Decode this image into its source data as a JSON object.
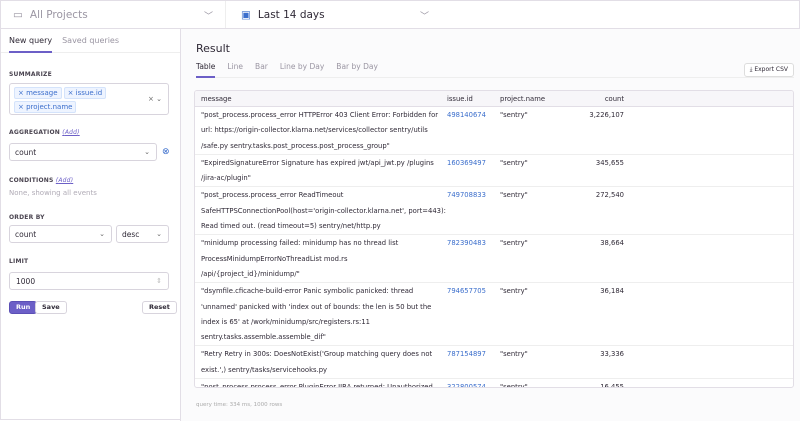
{
  "header": {
    "project": "All Projects",
    "date_range": "Last 14 days"
  },
  "sidebar": {
    "tabs": [
      "New query",
      "Saved queries"
    ],
    "summarize": {
      "label": "SUMMARIZE",
      "tags": [
        "message",
        "issue.id",
        "project.name"
      ]
    },
    "aggregation": {
      "label": "AGGREGATION",
      "add": "Add",
      "value": "count"
    },
    "conditions": {
      "label": "CONDITIONS",
      "add": "Add",
      "empty": "None, showing all events"
    },
    "order_by": {
      "label": "ORDER BY",
      "field": "count",
      "direction": "desc"
    },
    "limit": {
      "label": "LIMIT",
      "value": "1000"
    },
    "buttons": {
      "run": "Run",
      "save": "Save",
      "reset": "Reset"
    }
  },
  "main": {
    "title": "Result",
    "tabs": [
      "Table",
      "Line",
      "Bar",
      "Line by Day",
      "Bar by Day"
    ],
    "export": "Export CSV",
    "columns": [
      "message",
      "issue.id",
      "project.name",
      "count"
    ],
    "rows": [
      {
        "message": "\"post_process.process_error HTTPError 403 Client Error: Forbidden for url: https://origin-collector.klarna.net/services/collector sentry/utils /safe.py sentry.tasks.post_process.post_process_group\"",
        "issue": "498140674",
        "project": "\"sentry\"",
        "count": "3,226,107"
      },
      {
        "message": "\"ExpiredSignatureError Signature has expired jwt/api_jwt.py /plugins /jira-ac/plugin\"",
        "issue": "160369497",
        "project": "\"sentry\"",
        "count": "345,655"
      },
      {
        "message": "\"post_process.process_error ReadTimeout SafeHTTPSConnectionPool(host='origin-collector.klarna.net', port=443): Read timed out. (read timeout=5) sentry/net/http.py",
        "issue": "749708833",
        "project": "\"sentry\"",
        "count": "272,540"
      },
      {
        "message": "\"minidump processing failed: minidump has no thread list ProcessMinidumpErrorNoThreadList mod.rs /api/{project_id}/minidump/\"",
        "issue": "782390483",
        "project": "\"sentry\"",
        "count": "38,664"
      },
      {
        "message": "\"dsymfile.cficache-build-error Panic symbolic panicked: thread 'unnamed' panicked with 'index out of bounds: the len is 50 but the index is 65' at /work/minidump/src/registers.rs:11 sentry.tasks.assemble.assemble_dif\"",
        "issue": "794657705",
        "project": "\"sentry\"",
        "count": "36,184"
      },
      {
        "message": "\"Retry Retry in 300s: DoesNotExist('Group matching query does not exist.',) sentry/tasks/servicehooks.py",
        "issue": "787154897",
        "project": "\"sentry\"",
        "count": "33,336"
      },
      {
        "message": "\"post_process.process_error PluginError JIRA returned: Unauthorized. Please check your username, password, instance and project in your configuration settings. sentry/utils/safe.py",
        "issue": "322800574",
        "project": "\"sentry\"",
        "count": "16,455"
      }
    ],
    "query_time": "query time: 334 ms, 1000 rows"
  }
}
